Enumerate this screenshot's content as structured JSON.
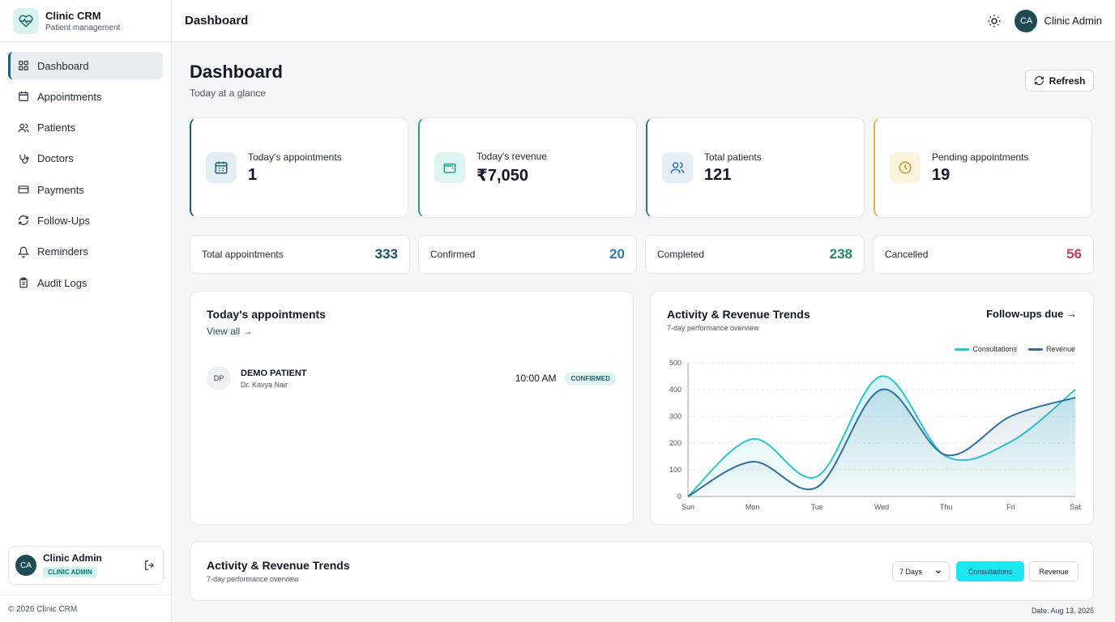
{
  "brand": {
    "title": "Clinic CRM",
    "subtitle": "Patient management"
  },
  "nav": [
    {
      "label": "Dashboard",
      "icon": "grid-icon",
      "active": true
    },
    {
      "label": "Appointments",
      "icon": "calendar-icon"
    },
    {
      "label": "Patients",
      "icon": "users-icon"
    },
    {
      "label": "Doctors",
      "icon": "stethoscope-icon"
    },
    {
      "label": "Payments",
      "icon": "credit-card-icon"
    },
    {
      "label": "Follow-Ups",
      "icon": "refresh-icon"
    },
    {
      "label": "Reminders",
      "icon": "bell-icon"
    },
    {
      "label": "Audit Logs",
      "icon": "clipboard-icon"
    }
  ],
  "sidebar_user": {
    "initials": "CA",
    "name": "Clinic Admin",
    "role": "CLINIC ADMIN"
  },
  "footer": {
    "copyright": "© 2026 Clinic CRM"
  },
  "header": {
    "title": "Dashboard",
    "user_initials": "CA",
    "user_name": "Clinic Admin"
  },
  "page": {
    "title": "Dashboard",
    "subtitle": "Today at a glance",
    "refresh_label": "Refresh"
  },
  "stats": [
    {
      "label": "Today's appointments",
      "value": "1",
      "icon": "calendar-icon",
      "accent": "#1f5f72",
      "icon_bg": "#e3eef2"
    },
    {
      "label": "Today's revenue",
      "value": "₹7,050",
      "icon": "wallet-icon",
      "accent": "#2a9d8f",
      "icon_bg": "#def4f0"
    },
    {
      "label": "Total patients",
      "value": "121",
      "icon": "users-icon",
      "accent": "#2f6f9f",
      "icon_bg": "#e4eef7"
    },
    {
      "label": "Pending appointments",
      "value": "19",
      "icon": "clock-icon",
      "accent": "#e0b43a",
      "icon_bg": "#fbf3dc"
    }
  ],
  "summary": [
    {
      "label": "Total appointments",
      "value": "333",
      "color": "#1f4f63"
    },
    {
      "label": "Confirmed",
      "value": "20",
      "color": "#2b7da8"
    },
    {
      "label": "Completed",
      "value": "238",
      "color": "#1f8a6e"
    },
    {
      "label": "Cancelled",
      "value": "56",
      "color": "#c0445e"
    }
  ],
  "today_panel": {
    "title": "Today's appointments",
    "view_all": "View all →",
    "appointments": [
      {
        "initials": "DP",
        "patient": "DEMO PATIENT",
        "doctor": "Dr. Kavya Nair",
        "time": "10:00 AM",
        "status": "CONFIRMED"
      }
    ]
  },
  "trends_panel": {
    "title": "Activity & Revenue Trends",
    "subtitle": "7-day performance overview",
    "followups_link": "Follow-ups due →",
    "legend_consult": "Consultations",
    "legend_revenue": "Revenue"
  },
  "chart_data": {
    "type": "line",
    "x": [
      "Sun",
      "Mon",
      "Tue",
      "Wed",
      "Thu",
      "Fri",
      "Sat"
    ],
    "ylim": [
      0,
      500
    ],
    "yticks": [
      "0",
      "100",
      "200",
      "300",
      "400",
      "500"
    ],
    "grid": true,
    "legend": "top-right",
    "series": [
      {
        "name": "Consultations",
        "values": [
          0,
          215,
          75,
          450,
          150,
          205,
          400
        ],
        "color": "#2ec4c8"
      },
      {
        "name": "Revenue",
        "values": [
          0,
          130,
          35,
          400,
          155,
          300,
          370
        ],
        "color": "#2f6f9f"
      }
    ]
  },
  "bottom_panel": {
    "title": "Activity & Revenue Trends",
    "subtitle": "7-day performance overview",
    "range": "7 Days",
    "btn_consult": "Consultations",
    "btn_revenue": "Revenue"
  },
  "date_text": "Date. Aug 13, 2025"
}
